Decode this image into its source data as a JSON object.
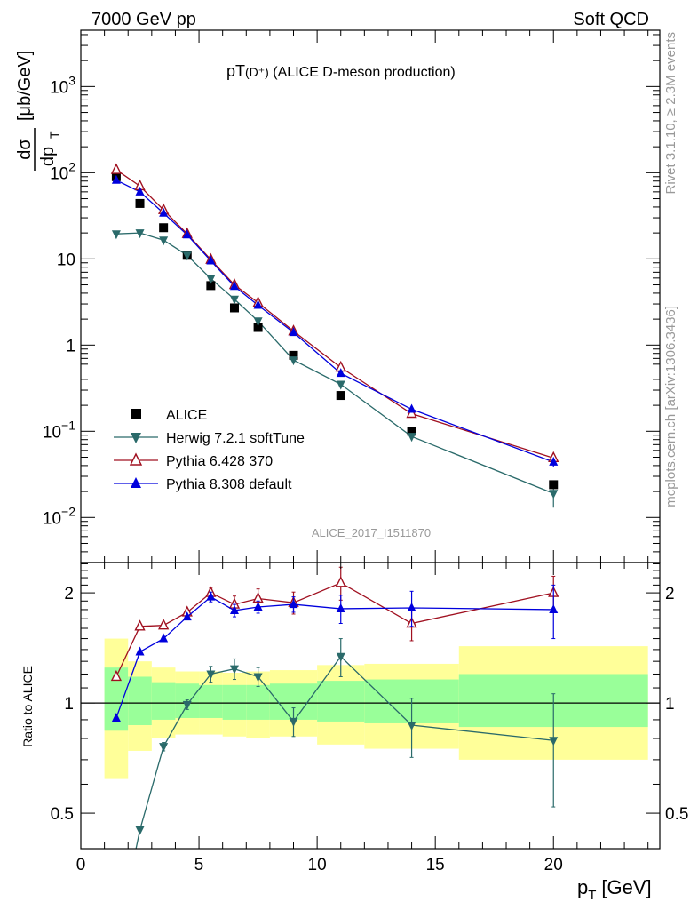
{
  "header": {
    "left": "7000 GeV pp",
    "right": "Soft QCD"
  },
  "side_labels": {
    "rivet": "Rivet 3.1.10, ≥ 2.3M events",
    "mcplots": "mcplots.cern.ch [arXiv:1306.3436]"
  },
  "chart_data": [
    {
      "type": "scatter",
      "title_main": "pT",
      "title_sub": "(D⁺)",
      "title_rest": " (ALICE D-meson production)",
      "ylabel_num": "dσ",
      "ylabel_den": "dp",
      "ylabel_den_sub": "T",
      "ylabel_units": "[μb/GeV]",
      "watermark": "ALICE_2017_I1511870",
      "yscale": "log",
      "xlim": [
        0,
        24.5
      ],
      "ylim": [
        0.003,
        4500
      ],
      "yticks": [
        {
          "value": 1000,
          "base": "10",
          "exp": "3"
        },
        {
          "value": 100,
          "base": "10",
          "exp": "2"
        },
        {
          "value": 10,
          "base": "10",
          "exp": ""
        },
        {
          "value": 1,
          "base": "1",
          "exp": ""
        },
        {
          "value": 0.1,
          "base": "10",
          "exp": "−1"
        },
        {
          "value": 0.01,
          "base": "10",
          "exp": "−2"
        }
      ],
      "legend_position": "bottom-left",
      "series": [
        {
          "name": "ALICE",
          "marker": "square",
          "color": "#000000",
          "line": false,
          "x": [
            1.5,
            2.5,
            3.5,
            4.5,
            5.5,
            6.5,
            7.5,
            9,
            11,
            14,
            20
          ],
          "y": [
            90,
            44,
            23,
            11,
            4.9,
            2.7,
            1.6,
            0.76,
            0.26,
            0.1,
            0.024
          ]
        },
        {
          "name": "Herwig 7.2.1 softTune",
          "marker": "triangle-down",
          "color": "#2a6a6a",
          "line": true,
          "x": [
            1.5,
            2.5,
            3.5,
            4.5,
            5.5,
            6.5,
            7.5,
            9,
            11,
            14,
            20
          ],
          "y": [
            19.5,
            20,
            16.5,
            11,
            5.9,
            3.4,
            1.9,
            0.67,
            0.35,
            0.087,
            0.019
          ],
          "yerr": [
            0,
            0,
            0,
            0,
            0,
            0,
            0,
            0,
            0,
            0.01,
            0.006
          ]
        },
        {
          "name": "Pythia 6.428 370",
          "marker": "triangle-open",
          "color": "#a01020",
          "line": true,
          "x": [
            1.5,
            2.5,
            3.5,
            4.5,
            5.5,
            6.5,
            7.5,
            9,
            11,
            14,
            20
          ],
          "y": [
            108,
            70,
            37,
            19.5,
            9.8,
            5,
            3.1,
            1.45,
            0.55,
            0.16,
            0.049
          ],
          "yerr": [
            0,
            0,
            0,
            0,
            0,
            0,
            0,
            0,
            0,
            0.015,
            0.006
          ]
        },
        {
          "name": "Pythia 8.308 default",
          "marker": "triangle-up",
          "color": "#0000dd",
          "line": true,
          "x": [
            1.5,
            2.5,
            3.5,
            4.5,
            5.5,
            6.5,
            7.5,
            9,
            11,
            14,
            20
          ],
          "y": [
            82,
            60,
            34,
            19,
            9.5,
            4.8,
            2.9,
            1.4,
            0.47,
            0.18,
            0.044
          ],
          "yerr": [
            0,
            0,
            0,
            0,
            0,
            0,
            0,
            0,
            0,
            0.015,
            0.005
          ]
        }
      ]
    },
    {
      "type": "line",
      "ylabel": "Ratio to ALICE",
      "xlabel_main": "p",
      "xlabel_sub": "T",
      "xlabel_units": "[GeV]",
      "yscale": "log",
      "xlim": [
        0,
        24.5
      ],
      "ylim": [
        0.4,
        2.42
      ],
      "xticks": [
        0,
        5,
        10,
        15,
        20
      ],
      "xtick_labels": [
        "0",
        "5",
        "10",
        "15",
        "20"
      ],
      "yticks": [
        0.5,
        1,
        2
      ],
      "ytick_labels": [
        "0.5",
        "1",
        "2"
      ],
      "reference_line": 1,
      "bands": {
        "bins": [
          [
            1,
            2
          ],
          [
            2,
            3
          ],
          [
            3,
            4
          ],
          [
            4,
            5
          ],
          [
            5,
            6
          ],
          [
            6,
            7
          ],
          [
            7,
            8
          ],
          [
            8,
            10
          ],
          [
            10,
            12
          ],
          [
            12,
            16
          ],
          [
            16,
            24
          ]
        ],
        "yellow": [
          [
            0.62,
            1.5
          ],
          [
            0.74,
            1.3
          ],
          [
            0.8,
            1.25
          ],
          [
            0.82,
            1.22
          ],
          [
            0.82,
            1.22
          ],
          [
            0.81,
            1.21
          ],
          [
            0.8,
            1.22
          ],
          [
            0.81,
            1.23
          ],
          [
            0.77,
            1.27
          ],
          [
            0.75,
            1.28
          ],
          [
            0.7,
            1.43
          ]
        ],
        "green": [
          [
            0.84,
            1.25
          ],
          [
            0.87,
            1.18
          ],
          [
            0.9,
            1.14
          ],
          [
            0.91,
            1.13
          ],
          [
            0.91,
            1.12
          ],
          [
            0.9,
            1.12
          ],
          [
            0.9,
            1.12
          ],
          [
            0.9,
            1.13
          ],
          [
            0.89,
            1.15
          ],
          [
            0.88,
            1.16
          ],
          [
            0.86,
            1.2
          ]
        ]
      },
      "series": [
        {
          "name": "Herwig 7.2.1 softTune",
          "marker": "triangle-down",
          "color": "#2a6a6a",
          "x": [
            1.5,
            2.5,
            3.5,
            4.5,
            5.5,
            6.5,
            7.5,
            9,
            11,
            14,
            20
          ],
          "y": [
            0.22,
            0.45,
            0.76,
            0.99,
            1.2,
            1.24,
            1.18,
            0.89,
            1.34,
            0.87,
            0.79
          ],
          "yerr": [
            0,
            0,
            0.02,
            0.03,
            0.06,
            0.08,
            0.07,
            0.08,
            0.16,
            0.16,
            0.27
          ]
        },
        {
          "name": "Pythia 6.428 370",
          "marker": "triangle-open",
          "color": "#a01020",
          "x": [
            1.5,
            2.5,
            3.5,
            4.5,
            5.5,
            6.5,
            7.5,
            9,
            11,
            14,
            20
          ],
          "y": [
            1.18,
            1.62,
            1.63,
            1.77,
            2.0,
            1.86,
            1.93,
            1.88,
            2.13,
            1.65,
            2.0
          ],
          "yerr": [
            0,
            0,
            0,
            0,
            0.06,
            0.1,
            0.12,
            0.13,
            0.22,
            0.17,
            0.22
          ]
        },
        {
          "name": "Pythia 8.308 default",
          "marker": "triangle-up",
          "color": "#0000dd",
          "x": [
            1.5,
            2.5,
            3.5,
            4.5,
            5.5,
            6.5,
            7.5,
            9,
            11,
            14,
            20
          ],
          "y": [
            0.91,
            1.38,
            1.5,
            1.72,
            1.95,
            1.79,
            1.83,
            1.86,
            1.81,
            1.82,
            1.8
          ],
          "yerr": [
            0,
            0,
            0,
            0,
            0.06,
            0.07,
            0.07,
            0.09,
            0.16,
            0.2,
            0.3
          ]
        }
      ]
    }
  ]
}
